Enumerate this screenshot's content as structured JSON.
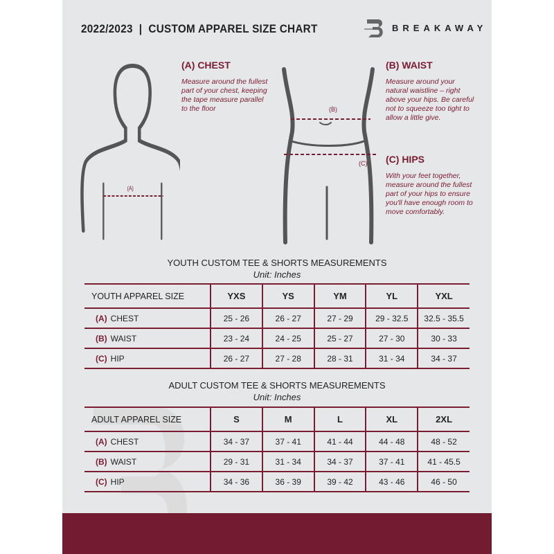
{
  "header": {
    "title": "2022/2023  |  CUSTOM APPAREL SIZE CHART",
    "brand": "BREAKAWAY"
  },
  "measures": {
    "chest": {
      "title": "(A) CHEST",
      "desc": "Measure around the fullest part of your chest, keeping the tape measure parallel to the floor",
      "marker": "(A)"
    },
    "waist": {
      "title": "(B) WAIST",
      "desc": "Measure around your natural waistline – right above your hips. Be careful not to squeeze too tight to allow a little give.",
      "marker": "(B)"
    },
    "hips": {
      "title": "(C) HIPS",
      "desc": "With your feet together, measure around the fullest part of your hips to ensure you'll have enough room to move comfortably.",
      "marker": "(C)"
    }
  },
  "youth": {
    "title": "YOUTH CUSTOM TEE & SHORTS MEASUREMENTS",
    "unit": "Unit: Inches",
    "header": "YOUTH APPAREL SIZE",
    "sizes": [
      "YXS",
      "YS",
      "YM",
      "YL",
      "YXL"
    ],
    "rows": [
      {
        "code": "(A)",
        "name": "CHEST",
        "values": [
          "25 - 26",
          "26 - 27",
          "27 - 29",
          "29 - 32.5",
          "32.5 - 35.5"
        ]
      },
      {
        "code": "(B)",
        "name": "WAIST",
        "values": [
          "23 - 24",
          "24 - 25",
          "25 - 27",
          "27 - 30",
          "30 - 33"
        ]
      },
      {
        "code": "(C)",
        "name": "HIP",
        "values": [
          "26 - 27",
          "27 - 28",
          "28 - 31",
          "31 - 34",
          "34 - 37"
        ]
      }
    ]
  },
  "adult": {
    "title": "ADULT CUSTOM TEE & SHORTS MEASUREMENTS",
    "unit": "Unit: Inches",
    "header": "ADULT APPAREL SIZE",
    "sizes": [
      "S",
      "M",
      "L",
      "XL",
      "2XL"
    ],
    "rows": [
      {
        "code": "(A)",
        "name": "CHEST",
        "values": [
          "34 - 37",
          "37 - 41",
          "41 - 44",
          "44 - 48",
          "48 - 52"
        ]
      },
      {
        "code": "(B)",
        "name": "WAIST",
        "values": [
          "29 - 31",
          "31 - 34",
          "34 - 37",
          "37 - 41",
          "41 - 45.5"
        ]
      },
      {
        "code": "(C)",
        "name": "HIP",
        "values": [
          "34 - 36",
          "36 - 39",
          "39 - 42",
          "43 - 46",
          "46 - 50"
        ]
      }
    ]
  },
  "colors": {
    "accent": "#7a1c32",
    "background": "#e6e7e8"
  }
}
